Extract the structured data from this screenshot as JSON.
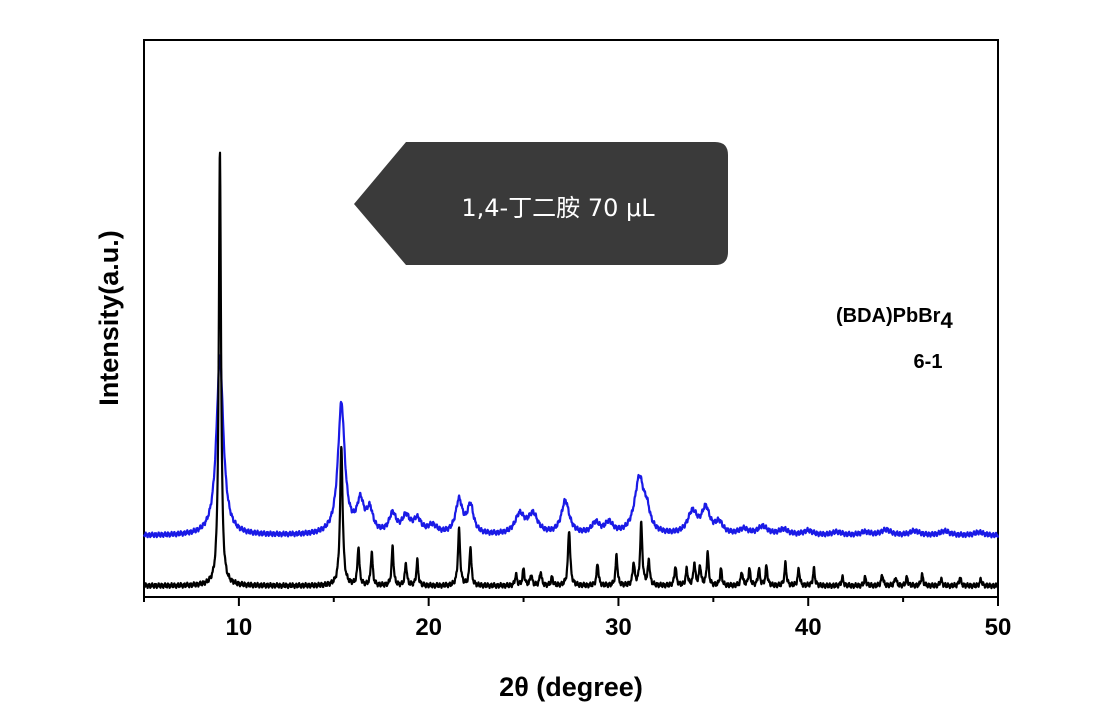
{
  "chart_data": {
    "type": "line",
    "title": "",
    "xlabel": "2θ (degree)",
    "ylabel": "Intensity(a.u.)",
    "xlim": [
      5,
      50
    ],
    "ylim": [
      0,
      100
    ],
    "xticks": [
      10,
      20,
      30,
      40,
      50
    ],
    "yticks_shown": false,
    "grid": false,
    "legend": "none",
    "annotations": {
      "compound": "(BDA)PbBr",
      "compound_subscript": "4",
      "ratio": "6-1"
    },
    "callout": "1,4-丁二胺   70 μL",
    "series": [
      {
        "color": "#1a1ae6",
        "baseline": 11,
        "peaks": [
          [
            9.0,
            32,
            0.22
          ],
          [
            15.4,
            23.5,
            0.22
          ],
          [
            16.4,
            5.5,
            0.22
          ],
          [
            16.9,
            4,
            0.2
          ],
          [
            18.1,
            3.5,
            0.22
          ],
          [
            18.8,
            3,
            0.25
          ],
          [
            19.4,
            2.5,
            0.25
          ],
          [
            20.2,
            1.5,
            0.3
          ],
          [
            21.6,
            6,
            0.22
          ],
          [
            22.2,
            5,
            0.2
          ],
          [
            24.8,
            3.5,
            0.3
          ],
          [
            25.5,
            3.5,
            0.3
          ],
          [
            27.2,
            6,
            0.25
          ],
          [
            28.8,
            2,
            0.25
          ],
          [
            29.5,
            2,
            0.25
          ],
          [
            31.1,
            10,
            0.3
          ],
          [
            31.5,
            3,
            0.2
          ],
          [
            33.9,
            4,
            0.3
          ],
          [
            34.6,
            4.5,
            0.25
          ],
          [
            35.3,
            2,
            0.25
          ],
          [
            36.6,
            1,
            0.3
          ],
          [
            37.6,
            1.5,
            0.3
          ],
          [
            38.7,
            1,
            0.3
          ],
          [
            40.0,
            0.8,
            0.3
          ],
          [
            41.5,
            0.6,
            0.3
          ],
          [
            43.0,
            0.6,
            0.3
          ],
          [
            44.1,
            1,
            0.3
          ],
          [
            45.6,
            0.8,
            0.3
          ],
          [
            47.2,
            0.8,
            0.3
          ],
          [
            49.0,
            0.6,
            0.3
          ]
        ]
      },
      {
        "color": "#000000",
        "baseline": 2,
        "peaks": [
          [
            9.0,
            78,
            0.07
          ],
          [
            15.4,
            25,
            0.08
          ],
          [
            16.3,
            7,
            0.06
          ],
          [
            17.0,
            6,
            0.06
          ],
          [
            18.1,
            7,
            0.06
          ],
          [
            18.8,
            4,
            0.06
          ],
          [
            19.4,
            4.5,
            0.06
          ],
          [
            21.6,
            10,
            0.07
          ],
          [
            22.2,
            7,
            0.06
          ],
          [
            24.6,
            2,
            0.06
          ],
          [
            25.0,
            3,
            0.06
          ],
          [
            25.4,
            2,
            0.06
          ],
          [
            25.9,
            2.5,
            0.06
          ],
          [
            26.5,
            1.5,
            0.06
          ],
          [
            27.4,
            10,
            0.07
          ],
          [
            28.9,
            4,
            0.06
          ],
          [
            29.9,
            5.5,
            0.06
          ],
          [
            30.8,
            4,
            0.06
          ],
          [
            31.2,
            11,
            0.07
          ],
          [
            31.6,
            4.5,
            0.06
          ],
          [
            33.0,
            3.5,
            0.06
          ],
          [
            33.6,
            3,
            0.06
          ],
          [
            34.0,
            4,
            0.06
          ],
          [
            34.3,
            3.5,
            0.06
          ],
          [
            34.7,
            6,
            0.06
          ],
          [
            35.4,
            3,
            0.06
          ],
          [
            36.5,
            2.5,
            0.06
          ],
          [
            36.9,
            3,
            0.06
          ],
          [
            37.4,
            3,
            0.06
          ],
          [
            37.8,
            3.5,
            0.06
          ],
          [
            38.8,
            4,
            0.06
          ],
          [
            39.5,
            3,
            0.06
          ],
          [
            40.3,
            3,
            0.06
          ],
          [
            41.8,
            1.5,
            0.06
          ],
          [
            43.0,
            1.5,
            0.06
          ],
          [
            43.9,
            2,
            0.06
          ],
          [
            44.6,
            1.5,
            0.06
          ],
          [
            45.2,
            1.5,
            0.06
          ],
          [
            46.0,
            2,
            0.06
          ],
          [
            47.0,
            1.2,
            0.06
          ],
          [
            48.0,
            1.5,
            0.06
          ],
          [
            49.1,
            1.2,
            0.06
          ]
        ]
      }
    ]
  },
  "colors": {
    "callout_bg": "#3a3a3a",
    "axis": "#000000"
  }
}
